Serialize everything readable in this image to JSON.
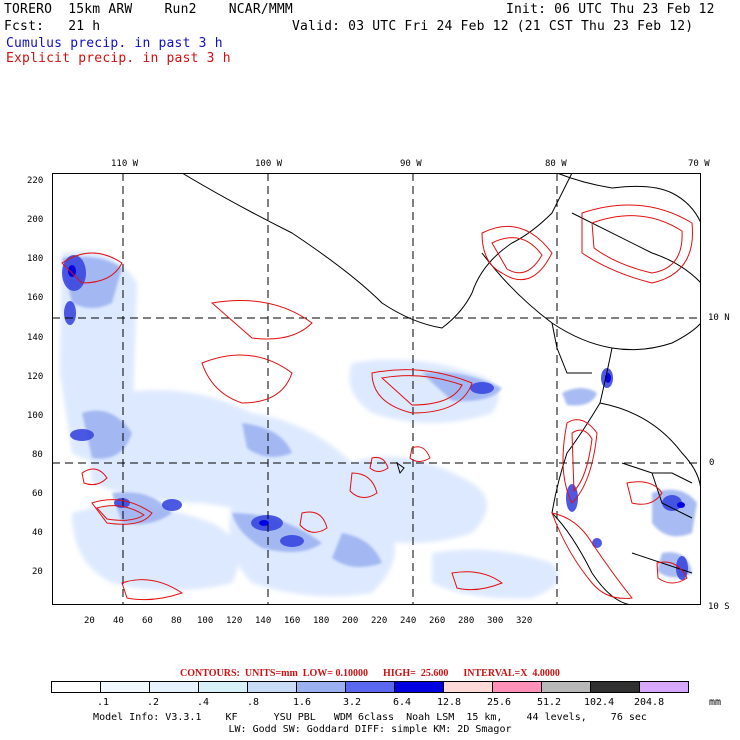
{
  "header": {
    "model_line": "TORERO  15km ARW    Run2    NCAR/MMM",
    "init_line": "Init: 06 UTC Thu 23 Feb 12",
    "fcst_line": "Fcst:   21 h",
    "valid_line": "Valid: 03 UTC Fri 24 Feb 12 (21 CST Thu 23 Feb 12)",
    "cumulus_line": "Cumulus precip. in past 3 h",
    "explicit_line": "Explicit precip. in past 3 h"
  },
  "map": {
    "top_lon_labels": [
      "110 W",
      "100 W",
      "90 W",
      "80 W",
      "70 W"
    ],
    "right_lat_labels": [
      "10 N",
      "0",
      "10 S"
    ],
    "left_y_ticks": [
      "220",
      "200",
      "180",
      "160",
      "140",
      "120",
      "100",
      "80",
      "60",
      "40",
      "20"
    ],
    "bottom_x_ticks": [
      "20",
      "40",
      "60",
      "80",
      "100",
      "120",
      "140",
      "160",
      "180",
      "200",
      "220",
      "240",
      "260",
      "280",
      "300",
      "320"
    ],
    "colors": {
      "contour": "#e01010",
      "coast": "#000000",
      "light_blue": "#dce8ff",
      "mid_blue": "#9ab0f0",
      "dark_blue": "#3a48e0",
      "deep_blue": "#0000e0"
    }
  },
  "contours_line": "CONTOURS:  UNITS=mm  LOW= 0.10000      HIGH=  25.600      INTERVAL=X  4.0000",
  "colorbar": {
    "ticks": [
      ".1",
      ".2",
      ".4",
      ".8",
      "1.6",
      "3.2",
      "6.4",
      "12.8",
      "25.6",
      "51.2",
      "102.4",
      "204.8"
    ],
    "units": "mm",
    "colors": [
      "#ffffff",
      "#f2f8ff",
      "#e6f2ff",
      "#d8f0f8",
      "#c8dcf8",
      "#9ab0f0",
      "#5a68f0",
      "#0000e0",
      "#ffd8d8",
      "#ff90b8",
      "#b8b8b8",
      "#303030",
      "#d8a8ff"
    ]
  },
  "model_info": {
    "line1": "Model Info: V3.3.1    KF      YSU PBL   WDM 6class  Noah LSM  15 km,    44 levels,    76 sec",
    "line2": "LW: Godd SW: Goddard DIFF: simple KM: 2D Smagor"
  }
}
